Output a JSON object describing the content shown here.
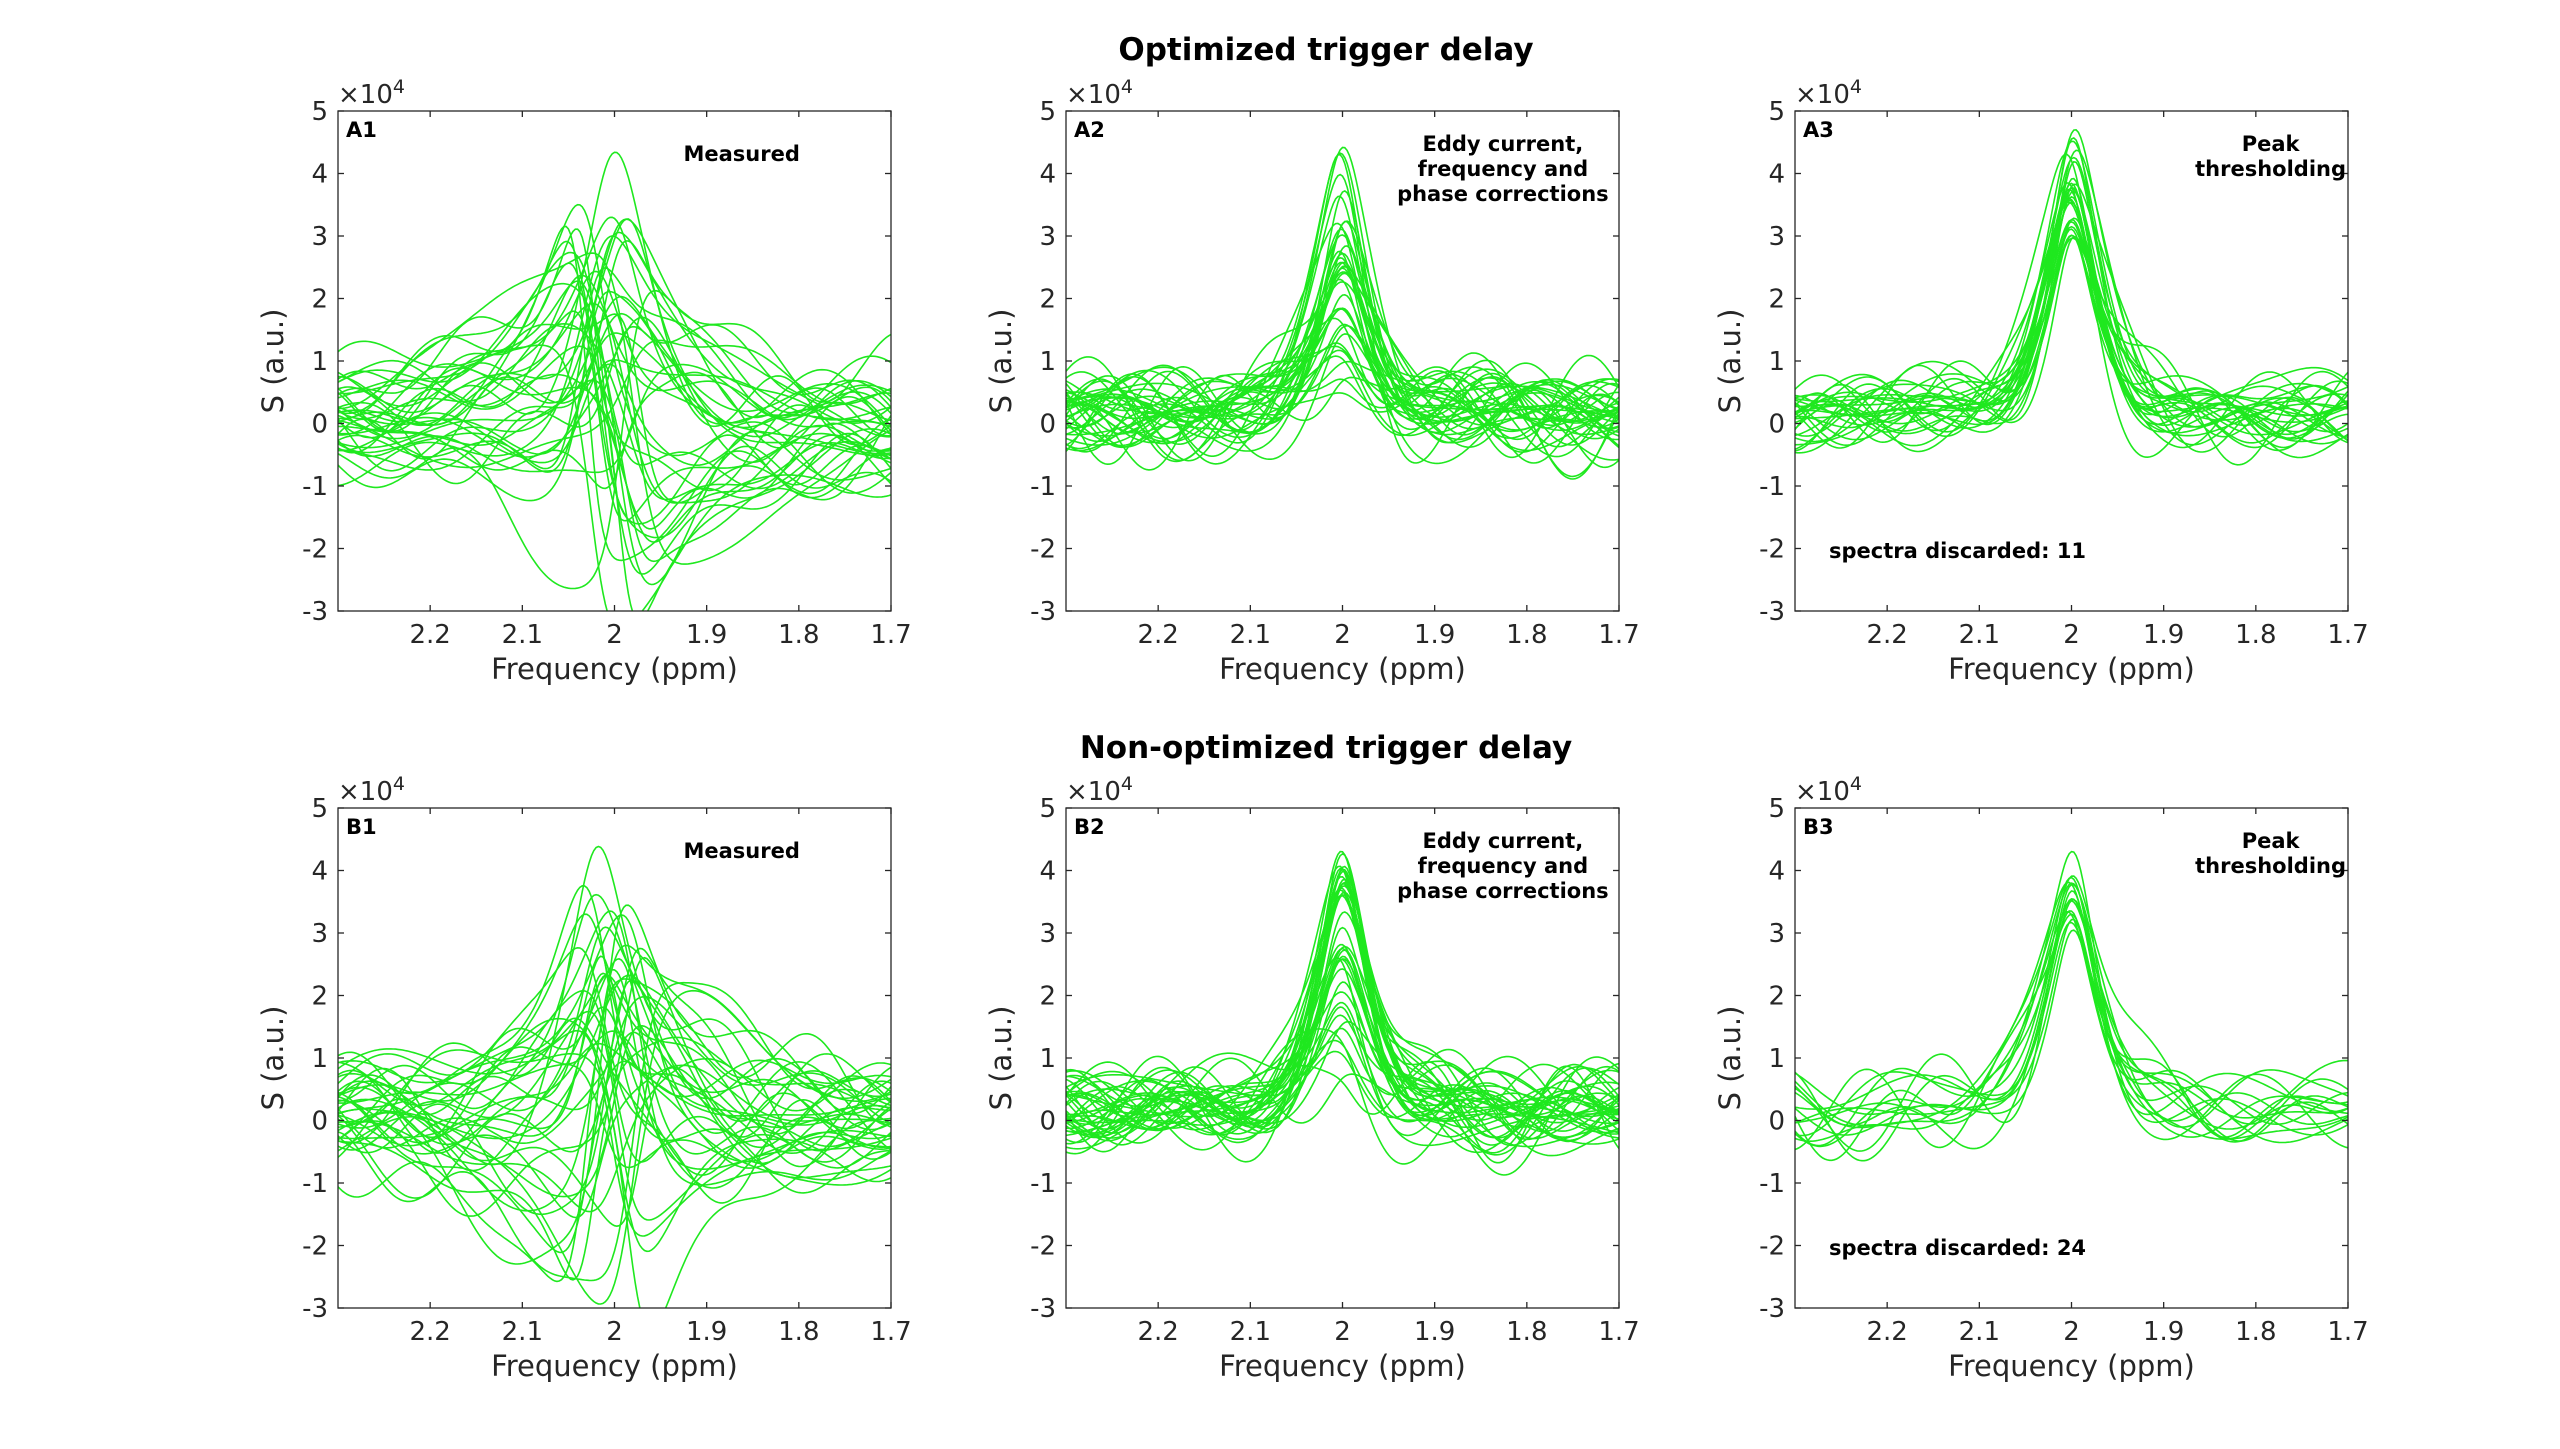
{
  "figure": {
    "row_titles": [
      "Optimized trigger delay",
      "Non-optimized trigger delay"
    ],
    "line_color": "#1fe81f"
  },
  "chart_data": [
    {
      "type": "line",
      "panel": "A1",
      "row": 0,
      "col": 0,
      "annotation": [
        "Measured"
      ],
      "discarded_text": "",
      "xlabel": "Frequency (ppm)",
      "ylabel": "S (a.u.)",
      "y_multiplier": "×10^4",
      "xlim": [
        2.3,
        1.7
      ],
      "ylim": [
        -3,
        5
      ],
      "xticks": [
        2.2,
        2.1,
        2.0,
        1.9,
        1.8,
        1.7
      ],
      "xtick_labels": [
        "2.2",
        "2.1",
        "2",
        "1.9",
        "1.8",
        "1.7"
      ],
      "yticks": [
        -3,
        -2,
        -1,
        0,
        1,
        2,
        3,
        4,
        5
      ],
      "ytick_labels": [
        "-3",
        "-2",
        "-1",
        "0",
        "1",
        "2",
        "3",
        "4",
        "5"
      ],
      "n_spectra": 40,
      "peak_center_ppm": 2.0,
      "peak_max": 4.0,
      "min_dip": -2.3
    },
    {
      "type": "line",
      "panel": "A2",
      "row": 0,
      "col": 1,
      "annotation": [
        "Eddy current,",
        "frequency and",
        "phase corrections"
      ],
      "discarded_text": "",
      "xlabel": "Frequency (ppm)",
      "ylabel": "S (a.u.)",
      "y_multiplier": "×10^4",
      "xlim": [
        2.3,
        1.7
      ],
      "ylim": [
        -3,
        5
      ],
      "xticks": [
        2.2,
        2.1,
        2.0,
        1.9,
        1.8,
        1.7
      ],
      "xtick_labels": [
        "2.2",
        "2.1",
        "2",
        "1.9",
        "1.8",
        "1.7"
      ],
      "yticks": [
        -3,
        -2,
        -1,
        0,
        1,
        2,
        3,
        4,
        5
      ],
      "ytick_labels": [
        "-3",
        "-2",
        "-1",
        "0",
        "1",
        "2",
        "3",
        "4",
        "5"
      ],
      "n_spectra": 40,
      "peak_center_ppm": 2.0,
      "peak_max": 4.2,
      "peak_min": 0.7
    },
    {
      "type": "line",
      "panel": "A3",
      "row": 0,
      "col": 2,
      "annotation": [
        "Peak",
        "thresholding"
      ],
      "discarded_text": "spectra discarded: 11",
      "xlabel": "Frequency (ppm)",
      "ylabel": "S (a.u.)",
      "y_multiplier": "×10^4",
      "xlim": [
        2.3,
        1.7
      ],
      "ylim": [
        -3,
        5
      ],
      "xticks": [
        2.2,
        2.1,
        2.0,
        1.9,
        1.8,
        1.7
      ],
      "xtick_labels": [
        "2.2",
        "2.1",
        "2",
        "1.9",
        "1.8",
        "1.7"
      ],
      "yticks": [
        -3,
        -2,
        -1,
        0,
        1,
        2,
        3,
        4,
        5
      ],
      "ytick_labels": [
        "-3",
        "-2",
        "-1",
        "0",
        "1",
        "2",
        "3",
        "4",
        "5"
      ],
      "n_spectra": 29,
      "peak_center_ppm": 2.0,
      "peak_max": 4.2,
      "peak_min": 3.0
    },
    {
      "type": "line",
      "panel": "B1",
      "row": 1,
      "col": 0,
      "annotation": [
        "Measured"
      ],
      "discarded_text": "",
      "xlabel": "Frequency (ppm)",
      "ylabel": "S (a.u.)",
      "y_multiplier": "×10^4",
      "xlim": [
        2.3,
        1.7
      ],
      "ylim": [
        -3,
        5
      ],
      "xticks": [
        2.2,
        2.1,
        2.0,
        1.9,
        1.8,
        1.7
      ],
      "xtick_labels": [
        "2.2",
        "2.1",
        "2",
        "1.9",
        "1.8",
        "1.7"
      ],
      "yticks": [
        -3,
        -2,
        -1,
        0,
        1,
        2,
        3,
        4,
        5
      ],
      "ytick_labels": [
        "-3",
        "-2",
        "-1",
        "0",
        "1",
        "2",
        "3",
        "4",
        "5"
      ],
      "n_spectra": 40,
      "peak_center_ppm": 2.0,
      "peak_max": 4.0,
      "min_dip": -2.1
    },
    {
      "type": "line",
      "panel": "B2",
      "row": 1,
      "col": 1,
      "annotation": [
        "Eddy current,",
        "frequency and",
        "phase corrections"
      ],
      "discarded_text": "",
      "xlabel": "Frequency (ppm)",
      "ylabel": "S (a.u.)",
      "y_multiplier": "×10^4",
      "xlim": [
        2.3,
        1.7
      ],
      "ylim": [
        -3,
        5
      ],
      "xticks": [
        2.2,
        2.1,
        2.0,
        1.9,
        1.8,
        1.7
      ],
      "xtick_labels": [
        "2.2",
        "2.1",
        "2",
        "1.9",
        "1.8",
        "1.7"
      ],
      "yticks": [
        -3,
        -2,
        -1,
        0,
        1,
        2,
        3,
        4,
        5
      ],
      "ytick_labels": [
        "-3",
        "-2",
        "-1",
        "0",
        "1",
        "2",
        "3",
        "4",
        "5"
      ],
      "n_spectra": 40,
      "peak_center_ppm": 2.0,
      "peak_max": 4.2,
      "peak_min": 0.8
    },
    {
      "type": "line",
      "panel": "B3",
      "row": 1,
      "col": 2,
      "annotation": [
        "Peak",
        "thresholding"
      ],
      "discarded_text": "spectra discarded: 24",
      "xlabel": "Frequency (ppm)",
      "ylabel": "S (a.u.)",
      "y_multiplier": "×10^4",
      "xlim": [
        2.3,
        1.7
      ],
      "ylim": [
        -3,
        5
      ],
      "xticks": [
        2.2,
        2.1,
        2.0,
        1.9,
        1.8,
        1.7
      ],
      "xtick_labels": [
        "2.2",
        "2.1",
        "2",
        "1.9",
        "1.8",
        "1.7"
      ],
      "yticks": [
        -3,
        -2,
        -1,
        0,
        1,
        2,
        3,
        4,
        5
      ],
      "ytick_labels": [
        "-3",
        "-2",
        "-1",
        "0",
        "1",
        "2",
        "3",
        "4",
        "5"
      ],
      "n_spectra": 16,
      "peak_center_ppm": 2.0,
      "peak_max": 4.2,
      "peak_min": 3.1
    }
  ]
}
